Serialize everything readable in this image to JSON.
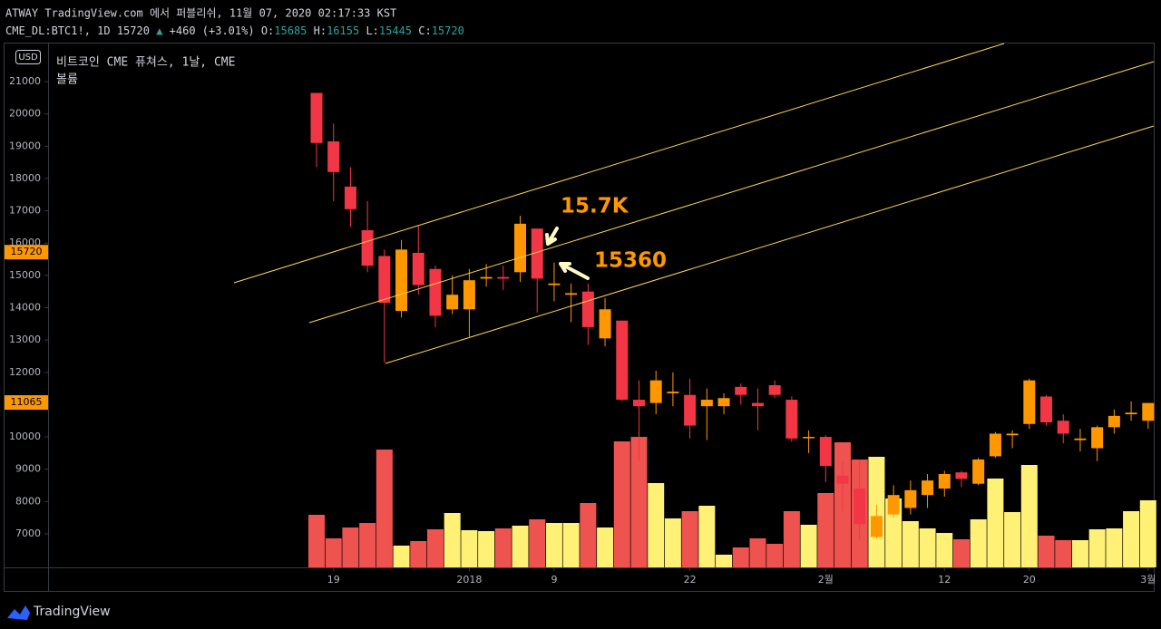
{
  "chart_data": {
    "type": "candlestick",
    "header": "ATWAY TradingView.com 에서 퍼블리쉬, 11월 07, 2020 02:17:33 KST",
    "symbol": "CME_DL:BTC1!, 1D",
    "last": "15720",
    "change": "+460 (+3.01%)",
    "ohlc_labels": [
      "O:",
      "H:",
      "L:",
      "C:"
    ],
    "ohlc_values": [
      "15685",
      "16155",
      "15445",
      "15720"
    ],
    "title": "비트코인 CME 퓨쳐스, 1날, CME",
    "volume_label": "볼륨",
    "currency": "USD",
    "brand": "TradingView",
    "annotations": [
      "15.7K",
      "15360"
    ],
    "categories": [
      null,
      "19",
      null,
      null,
      null,
      null,
      null,
      null,
      null,
      "2018",
      null,
      null,
      null,
      null,
      "9",
      null,
      null,
      null,
      null,
      null,
      null,
      null,
      "22",
      null,
      null,
      null,
      null,
      null,
      null,
      null,
      "2월",
      null,
      null,
      null,
      null,
      null,
      null,
      "12",
      null,
      null,
      null,
      null,
      "20",
      null,
      null,
      null,
      null,
      null,
      null,
      "3월"
    ],
    "open": [
      20650,
      19150,
      17750,
      16400,
      15600,
      13900,
      15700,
      15200,
      13950,
      13950,
      14900,
      14950,
      15100,
      16450,
      14700,
      14400,
      14500,
      13050,
      13600,
      11150,
      11050,
      11350,
      11300,
      10950,
      10950,
      11550,
      11050,
      11600,
      11150,
      9980,
      10000,
      8800,
      8400,
      6900,
      7600,
      7800,
      8200,
      8400,
      8900,
      8550,
      9400,
      10050,
      10400,
      11250,
      10500,
      9900,
      9650,
      10300,
      10700,
      10500
    ],
    "high": [
      20650,
      19700,
      18350,
      17300,
      15800,
      16100,
      16550,
      15300,
      15000,
      15200,
      15350,
      15300,
      16850,
      16450,
      15400,
      14750,
      14750,
      14300,
      13600,
      11750,
      12050,
      12000,
      11800,
      11500,
      11350,
      11650,
      11500,
      11750,
      11250,
      10200,
      10050,
      9250,
      9300,
      7900,
      8500,
      8650,
      8850,
      8950,
      8950,
      9350,
      10150,
      10200,
      11800,
      11300,
      10700,
      10250,
      10350,
      10850,
      11100,
      11050
    ],
    "low": [
      18350,
      17300,
      16500,
      15100,
      12300,
      13700,
      14400,
      13400,
      13800,
      13100,
      14650,
      14550,
      14800,
      13850,
      14200,
      13550,
      12850,
      12800,
      11100,
      9250,
      10700,
      10950,
      9950,
      9900,
      10700,
      11000,
      10200,
      11200,
      9850,
      9500,
      8600,
      7700,
      6800,
      6850,
      7500,
      7600,
      7800,
      8150,
      8450,
      8500,
      9350,
      9650,
      10250,
      10350,
      9800,
      9550,
      9250,
      10100,
      10500,
      10250
    ],
    "close": [
      19100,
      18200,
      17050,
      15300,
      14150,
      15800,
      14700,
      13750,
      14400,
      14850,
      14950,
      14900,
      16600,
      14900,
      14750,
      14450,
      13400,
      13950,
      11150,
      10950,
      11750,
      11400,
      10350,
      11150,
      11200,
      11300,
      10950,
      11300,
      9950,
      10000,
      9100,
      8550,
      7300,
      7550,
      8200,
      8350,
      8650,
      8850,
      8700,
      9300,
      10100,
      10100,
      11750,
      10450,
      10100,
      9950,
      10300,
      10650,
      10750,
      11050
    ],
    "volume": [
      58,
      32,
      44,
      49,
      130,
      24,
      29,
      42,
      60,
      41,
      40,
      43,
      46,
      53,
      49,
      49,
      71,
      44,
      139,
      144,
      93,
      54,
      62,
      68,
      14,
      22,
      32,
      26,
      62,
      47,
      82,
      138,
      119,
      122,
      76,
      51,
      43,
      38,
      31,
      53,
      98,
      61,
      113,
      35,
      30,
      30,
      42,
      43,
      62,
      74
    ],
    "up_color": "#ff9800",
    "down_color": "#f23645",
    "volume_up_color": "#fff176",
    "volume_down_color": "#ef5350",
    "ylim": [
      5960,
      22180
    ],
    "yticks": [
      7000,
      8000,
      9000,
      10000,
      11000,
      12000,
      13000,
      14000,
      15000,
      16000,
      17000,
      18000,
      19000,
      20000,
      21000
    ],
    "price_markers": [
      15720,
      11065
    ],
    "marker_color": "#ff9800"
  }
}
